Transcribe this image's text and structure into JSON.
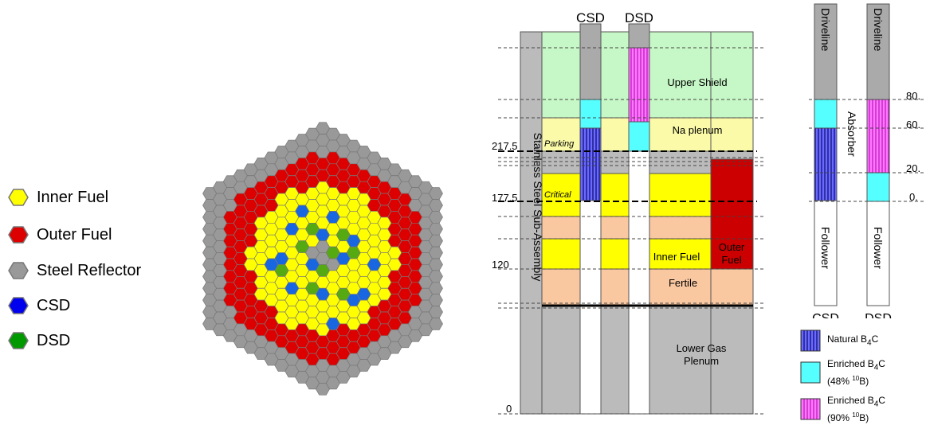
{
  "core_legend": {
    "items": [
      {
        "label": "Inner Fuel",
        "color": "#ffff00"
      },
      {
        "label": "Outer Fuel",
        "color": "#dd0000"
      },
      {
        "label": "Steel Reflector",
        "color": "#999999"
      },
      {
        "label": "CSD",
        "color": "#0000ee"
      },
      {
        "label": "DSD",
        "color": "#009900"
      }
    ]
  },
  "colors": {
    "inner_fuel": "#ffff00",
    "outer_fuel": "#dd0000",
    "reflector": "#999999",
    "csd": "#1866e0",
    "dsd": "#55aa11",
    "upper_shield": "#c6f7c6",
    "na_plenum": "#fafaa8",
    "fertile": "#fac8a0",
    "lower_plenum": "#bbbbbb",
    "natural_b4c": "#3b3bc8",
    "enriched48": "#55ffff",
    "enriched90": "#ff66ff"
  },
  "axial": {
    "top_labels": {
      "csd": "CSD",
      "dsd": "DSD"
    },
    "height_labels": [
      "217.5",
      "177.5",
      "120",
      "0"
    ],
    "position_labels": {
      "parking": "Parking",
      "critical": "Critical"
    },
    "region_labels": {
      "upper_shield": "Upper Shield",
      "na_plenum": "Na plenum",
      "inner_fuel": "Inner Fuel",
      "outer_fuel_1": "Outer",
      "outer_fuel_2": "Fuel",
      "fertile": "Fertile",
      "lower_plenum_1": "Lower Gas",
      "lower_plenum_2": "Plenum"
    },
    "stainless_label": "Stainless Steel Sub-Assembly"
  },
  "rods": {
    "driveline": "Driveline",
    "absorber": "Absorber",
    "follower": "Follower",
    "scale": [
      "80.",
      "60.",
      "20.",
      "0."
    ],
    "bottom_labels": {
      "csd": "CSD",
      "dsd": "DSD"
    }
  },
  "material_legend": {
    "natural": {
      "label": "Natural B",
      "sub": "4",
      "after": "C"
    },
    "enriched48": {
      "label": "Enriched B",
      "sub": "4",
      "after": "C",
      "line2": "(48% ",
      "sup": "10",
      "line2_end": "B)"
    },
    "enriched90": {
      "label": "Enriched B",
      "sub": "4",
      "after": "C",
      "line2": "(90% ",
      "sup": "10",
      "line2_end": "B)"
    }
  }
}
